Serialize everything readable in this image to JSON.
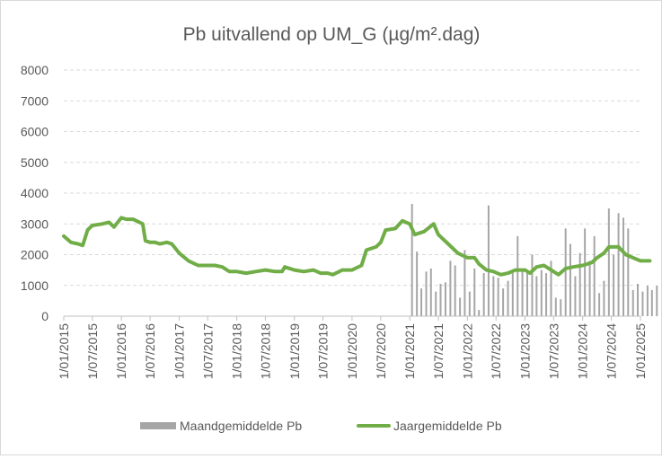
{
  "chart_data": {
    "type": "bar+line",
    "title": "Pb uitvallend op UM_G (µg/m².dag)",
    "ylim": [
      0,
      8000
    ],
    "yticks": [
      "0",
      "1000",
      "2000",
      "3000",
      "4000",
      "5000",
      "6000",
      "7000",
      "8000"
    ],
    "xticks": [
      "1/01/2015",
      "1/07/2015",
      "1/01/2016",
      "1/07/2016",
      "1/01/2017",
      "1/07/2017",
      "1/01/2018",
      "1/07/2018",
      "1/01/2019",
      "1/07/2019",
      "1/01/2020",
      "1/07/2020",
      "1/01/2021",
      "1/07/2021",
      "1/01/2022",
      "1/07/2022",
      "1/01/2023",
      "1/07/2023",
      "1/01/2024",
      "1/07/2024",
      "1/01/2025"
    ],
    "grid": true,
    "legend_position": "bottom",
    "colors": {
      "bars": "#a6a6a6",
      "line": "#70ad47",
      "grid": "#d9d9d9",
      "axis": "#bfbfbf",
      "text": "#595959"
    },
    "series": [
      {
        "name": "Maandgemiddelde Pb",
        "type": "bar",
        "points": [
          [
            "2021-01-15",
            3650
          ],
          [
            "2021-02-15",
            2100
          ],
          [
            "2021-03-15",
            900
          ],
          [
            "2021-04-15",
            1450
          ],
          [
            "2021-05-15",
            1550
          ],
          [
            "2021-06-15",
            800
          ],
          [
            "2021-07-15",
            1050
          ],
          [
            "2021-08-15",
            1100
          ],
          [
            "2021-09-15",
            1800
          ],
          [
            "2021-10-15",
            1650
          ],
          [
            "2021-11-15",
            600
          ],
          [
            "2021-12-15",
            2150
          ],
          [
            "2022-01-15",
            800
          ],
          [
            "2022-02-15",
            1550
          ],
          [
            "2022-03-15",
            200
          ],
          [
            "2022-04-15",
            1400
          ],
          [
            "2022-05-15",
            3600
          ],
          [
            "2022-06-15",
            1300
          ],
          [
            "2022-07-15",
            1250
          ],
          [
            "2022-08-15",
            900
          ],
          [
            "2022-09-15",
            1150
          ],
          [
            "2022-10-15",
            1400
          ],
          [
            "2022-11-15",
            2600
          ],
          [
            "2022-12-15",
            1450
          ],
          [
            "2023-01-15",
            1500
          ],
          [
            "2023-02-15",
            2000
          ],
          [
            "2023-03-15",
            1300
          ],
          [
            "2023-04-15",
            1500
          ],
          [
            "2023-05-15",
            1400
          ],
          [
            "2023-06-15",
            1800
          ],
          [
            "2023-07-15",
            600
          ],
          [
            "2023-08-15",
            550
          ],
          [
            "2023-09-15",
            2850
          ],
          [
            "2023-10-15",
            2350
          ],
          [
            "2023-11-15",
            1300
          ],
          [
            "2023-12-15",
            2050
          ],
          [
            "2024-01-15",
            2850
          ],
          [
            "2024-02-15",
            1800
          ],
          [
            "2024-03-15",
            2600
          ],
          [
            "2024-04-15",
            750
          ],
          [
            "2024-05-15",
            1150
          ],
          [
            "2024-06-15",
            3500
          ],
          [
            "2024-07-15",
            2000
          ],
          [
            "2024-08-15",
            3350
          ],
          [
            "2024-09-15",
            3200
          ],
          [
            "2024-10-15",
            2850
          ],
          [
            "2024-11-15",
            850
          ],
          [
            "2024-12-15",
            1050
          ],
          [
            "2025-01-15",
            800
          ],
          [
            "2025-02-15",
            1000
          ],
          [
            "2025-03-15",
            850
          ],
          [
            "2025-04-15",
            1000
          ]
        ]
      },
      {
        "name": "Jaargemiddelde Pb",
        "type": "line",
        "points": [
          [
            "2015-01-01",
            2600
          ],
          [
            "2015-02-15",
            2400
          ],
          [
            "2015-04-01",
            2350
          ],
          [
            "2015-05-01",
            2300
          ],
          [
            "2015-06-01",
            2800
          ],
          [
            "2015-07-01",
            2950
          ],
          [
            "2015-09-01",
            3000
          ],
          [
            "2015-10-15",
            3050
          ],
          [
            "2015-11-15",
            2900
          ],
          [
            "2016-01-01",
            3200
          ],
          [
            "2016-02-01",
            3150
          ],
          [
            "2016-03-15",
            3150
          ],
          [
            "2016-05-15",
            3000
          ],
          [
            "2016-06-01",
            2450
          ],
          [
            "2016-07-01",
            2400
          ],
          [
            "2016-08-01",
            2400
          ],
          [
            "2016-09-01",
            2350
          ],
          [
            "2016-10-15",
            2400
          ],
          [
            "2016-11-15",
            2350
          ],
          [
            "2017-01-01",
            2050
          ],
          [
            "2017-03-01",
            1800
          ],
          [
            "2017-05-01",
            1650
          ],
          [
            "2017-06-15",
            1650
          ],
          [
            "2017-08-15",
            1650
          ],
          [
            "2017-10-01",
            1600
          ],
          [
            "2017-11-15",
            1450
          ],
          [
            "2018-01-01",
            1450
          ],
          [
            "2018-03-01",
            1400
          ],
          [
            "2018-05-01",
            1450
          ],
          [
            "2018-07-01",
            1500
          ],
          [
            "2018-09-01",
            1450
          ],
          [
            "2018-10-15",
            1450
          ],
          [
            "2018-11-01",
            1600
          ],
          [
            "2019-01-01",
            1500
          ],
          [
            "2019-03-01",
            1450
          ],
          [
            "2019-05-01",
            1500
          ],
          [
            "2019-06-15",
            1400
          ],
          [
            "2019-08-01",
            1400
          ],
          [
            "2019-09-01",
            1350
          ],
          [
            "2019-11-01",
            1500
          ],
          [
            "2020-01-01",
            1500
          ],
          [
            "2020-03-01",
            1650
          ],
          [
            "2020-04-01",
            2150
          ],
          [
            "2020-06-01",
            2250
          ],
          [
            "2020-07-01",
            2400
          ],
          [
            "2020-08-01",
            2800
          ],
          [
            "2020-10-01",
            2850
          ],
          [
            "2020-11-15",
            3100
          ],
          [
            "2021-01-01",
            3000
          ],
          [
            "2021-02-01",
            2650
          ],
          [
            "2021-04-01",
            2750
          ],
          [
            "2021-06-01",
            3000
          ],
          [
            "2021-07-01",
            2650
          ],
          [
            "2021-09-01",
            2350
          ],
          [
            "2021-11-01",
            2050
          ],
          [
            "2022-01-01",
            1900
          ],
          [
            "2022-02-15",
            1900
          ],
          [
            "2022-03-15",
            1700
          ],
          [
            "2022-05-01",
            1500
          ],
          [
            "2022-06-15",
            1450
          ],
          [
            "2022-08-01",
            1350
          ],
          [
            "2022-09-15",
            1400
          ],
          [
            "2022-11-01",
            1500
          ],
          [
            "2023-01-01",
            1500
          ],
          [
            "2023-02-01",
            1400
          ],
          [
            "2023-03-15",
            1600
          ],
          [
            "2023-05-01",
            1650
          ],
          [
            "2023-06-15",
            1500
          ],
          [
            "2023-08-01",
            1350
          ],
          [
            "2023-09-15",
            1550
          ],
          [
            "2023-11-01",
            1600
          ],
          [
            "2024-01-01",
            1650
          ],
          [
            "2024-02-01",
            1700
          ],
          [
            "2024-03-01",
            1750
          ],
          [
            "2024-04-01",
            1900
          ],
          [
            "2024-05-15",
            2050
          ],
          [
            "2024-06-15",
            2250
          ],
          [
            "2024-08-15",
            2250
          ],
          [
            "2024-10-01",
            2000
          ],
          [
            "2024-11-15",
            1900
          ],
          [
            "2025-01-01",
            1800
          ],
          [
            "2025-03-01",
            1800
          ]
        ]
      }
    ]
  }
}
